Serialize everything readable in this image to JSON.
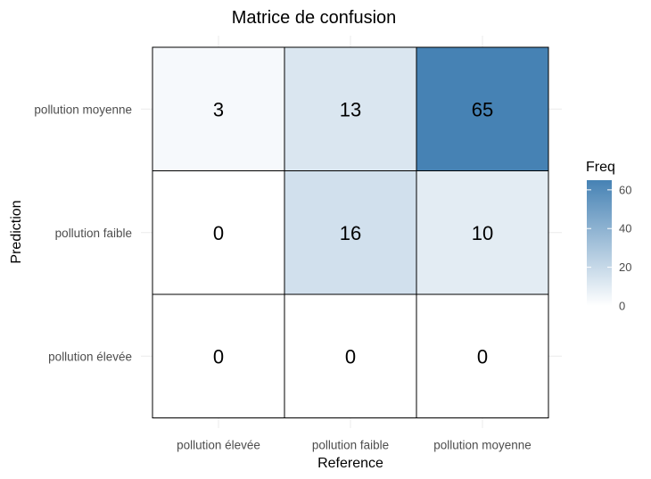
{
  "chart_data": {
    "type": "heatmap",
    "title": "Matrice de confusion",
    "xlabel": "Reference",
    "ylabel": "Prediction",
    "x_categories": [
      "pollution élevée",
      "pollution faible",
      "pollution moyenne"
    ],
    "y_categories": [
      "pollution moyenne",
      "pollution faible",
      "pollution élevée"
    ],
    "values": [
      [
        3,
        13,
        65
      ],
      [
        0,
        16,
        10
      ],
      [
        0,
        0,
        0
      ]
    ],
    "legend": {
      "title": "Freq",
      "ticks": [
        0,
        20,
        40,
        60
      ],
      "range": [
        0,
        65
      ],
      "color_low": "#ffffff",
      "color_high": "#4682b4",
      "placement": "right"
    },
    "grid": true
  }
}
